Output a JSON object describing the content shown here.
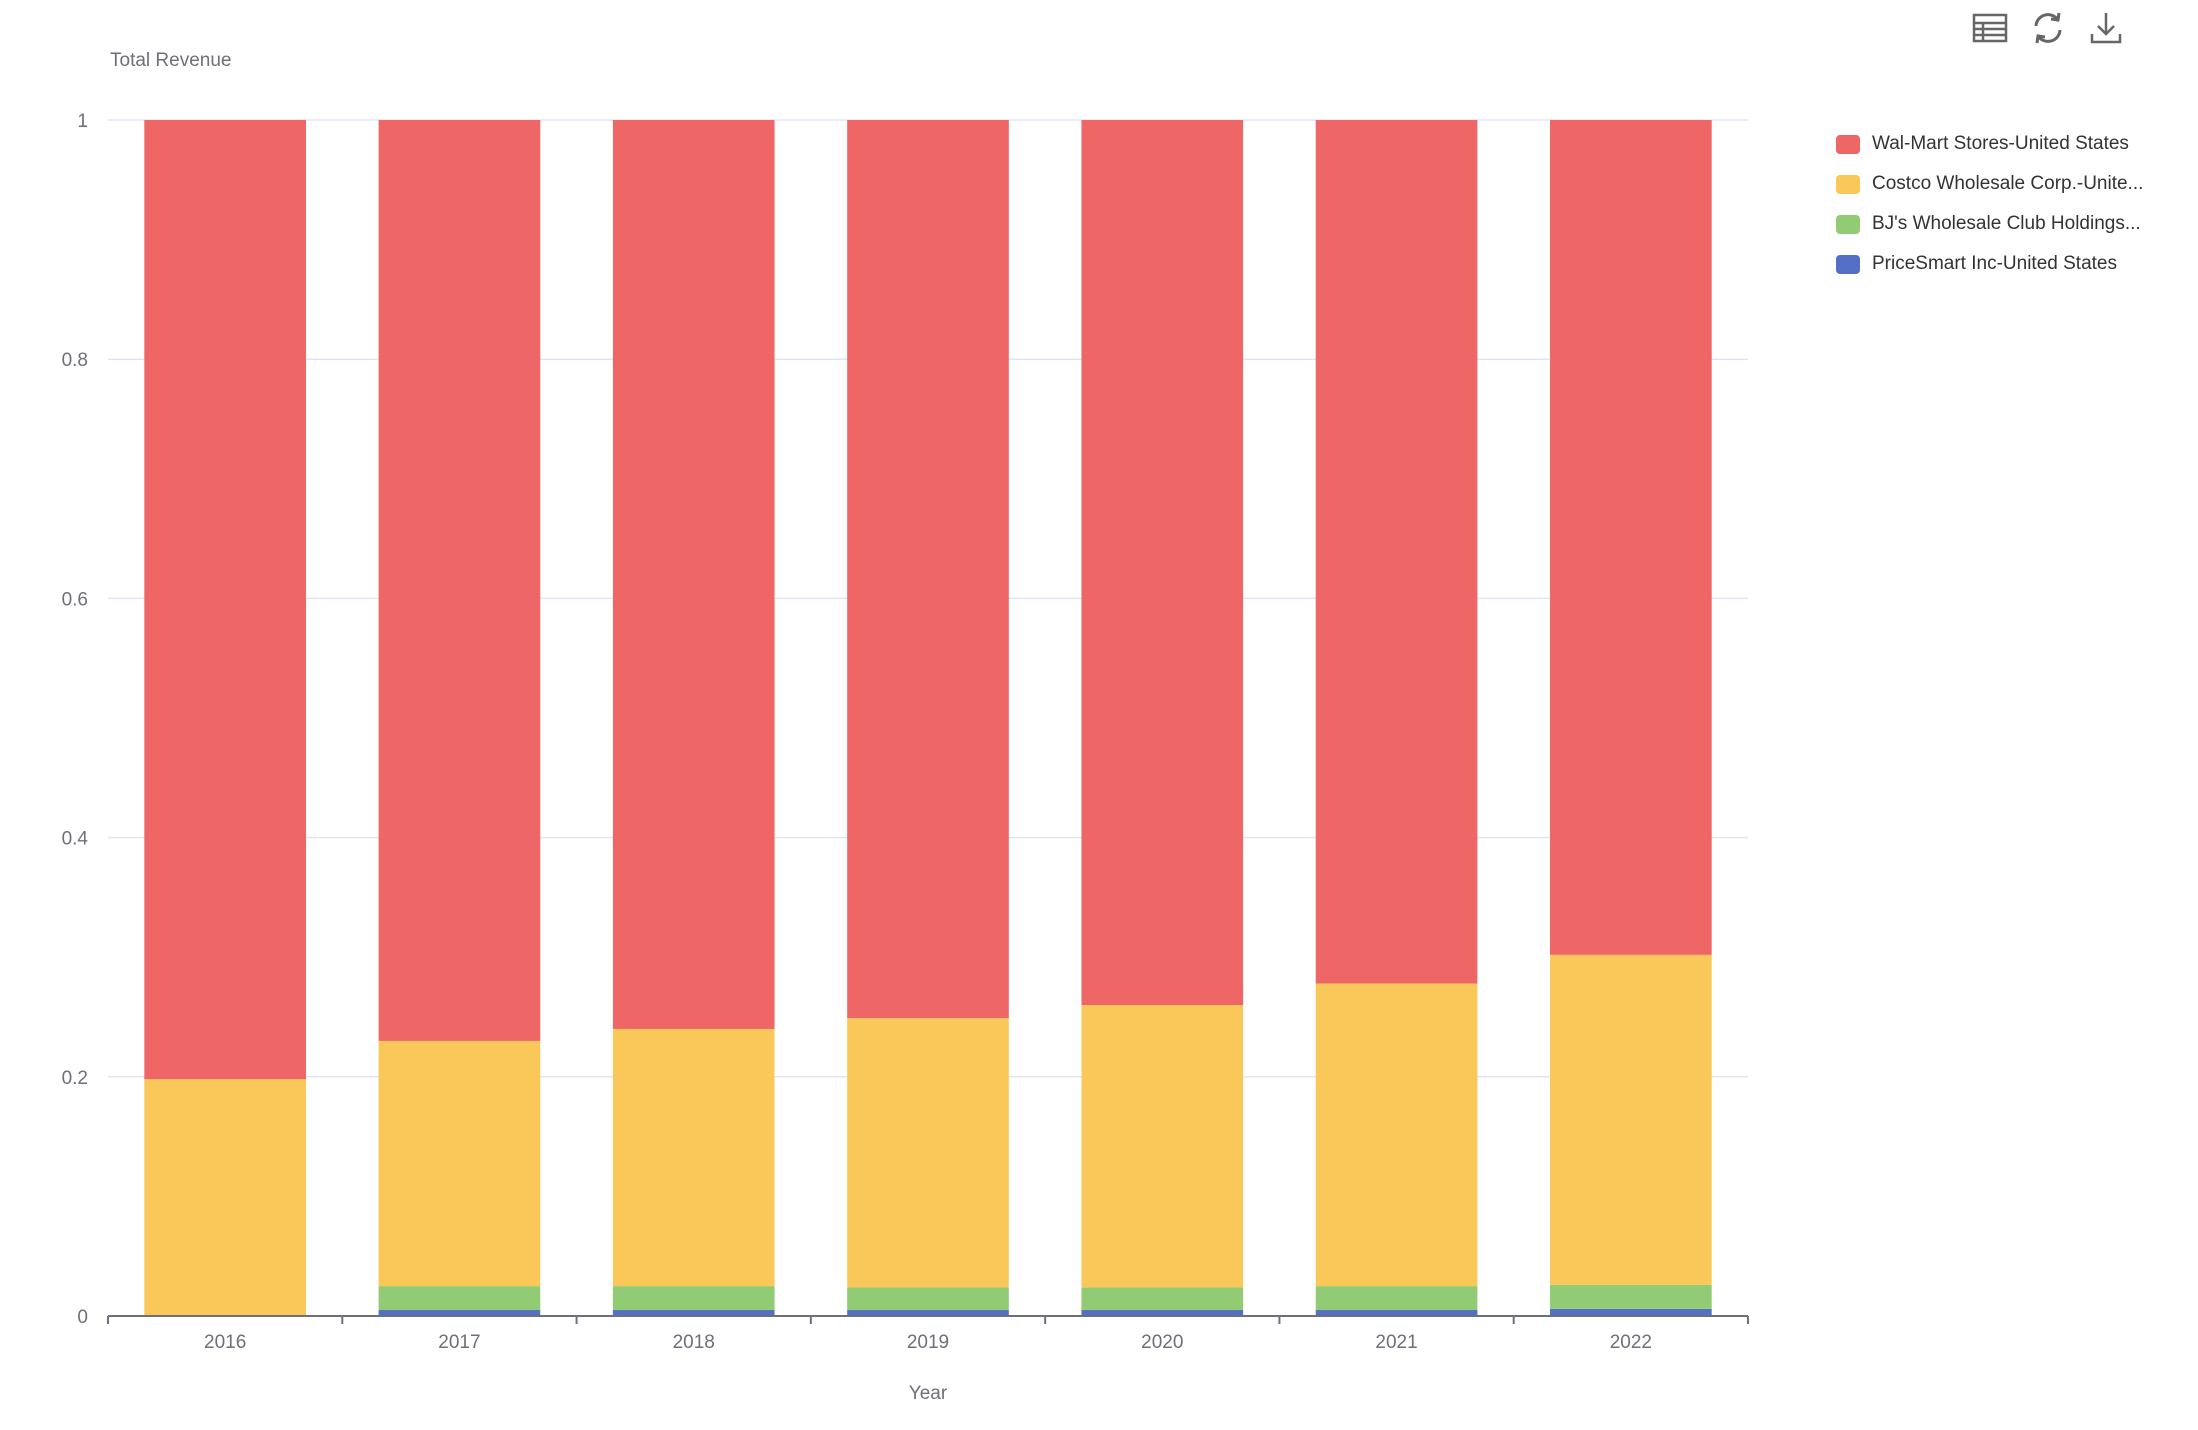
{
  "toolbar": {
    "icons": [
      "data-view-icon",
      "refresh-icon",
      "download-icon"
    ]
  },
  "chart_data": {
    "type": "bar",
    "stacked": true,
    "title": "",
    "ylabel": "Total Revenue",
    "xlabel": "Year",
    "ylim": [
      0,
      1
    ],
    "yticks": [
      "0",
      "0.2",
      "0.4",
      "0.6",
      "0.8",
      "1"
    ],
    "grid": true,
    "legend_position": "top-right",
    "categories": [
      "2016",
      "2017",
      "2018",
      "2019",
      "2020",
      "2021",
      "2022"
    ],
    "series": [
      {
        "name": "PriceSmart Inc-United States",
        "color": "#5470c6",
        "values": [
          0.0,
          0.005,
          0.005,
          0.005,
          0.005,
          0.005,
          0.006
        ]
      },
      {
        "name": "BJ's Wholesale Club Holdings...",
        "color": "#91cc75",
        "values": [
          0.0,
          0.02,
          0.02,
          0.019,
          0.019,
          0.02,
          0.02
        ]
      },
      {
        "name": "Costco Wholesale Corp.-Unite...",
        "color": "#fac858",
        "values": [
          0.198,
          0.205,
          0.215,
          0.225,
          0.236,
          0.253,
          0.276
        ]
      },
      {
        "name": "Wal-Mart Stores-United States",
        "color": "#ee6666",
        "values": [
          0.802,
          0.77,
          0.76,
          0.751,
          0.74,
          0.722,
          0.698
        ]
      }
    ],
    "legend_order": [
      3,
      2,
      1,
      0
    ]
  }
}
